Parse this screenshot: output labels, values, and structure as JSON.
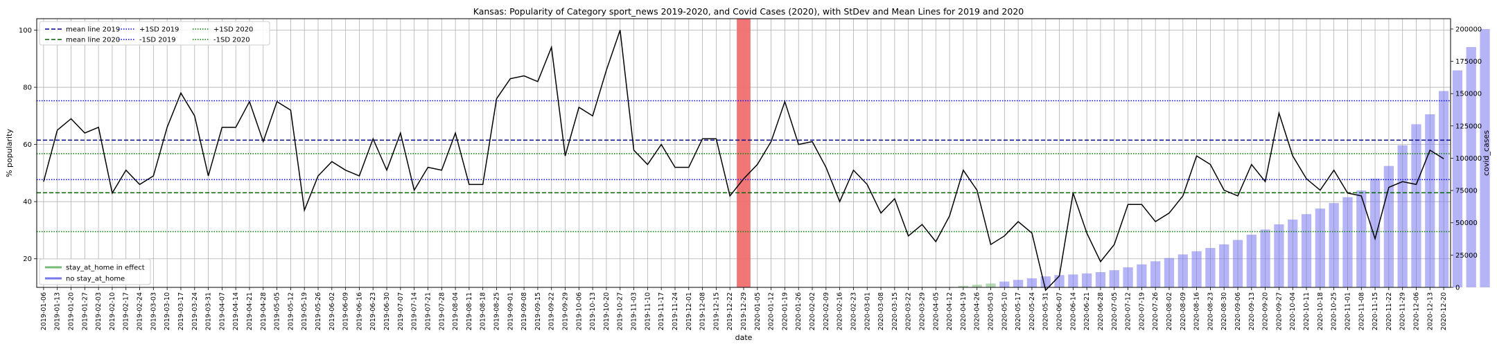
{
  "chart_data": {
    "type": "line",
    "title": "Kansas: Popularity of Category sport_news 2019-2020, and Covid Cases (2020), with StDev and Mean Lines for 2019 and 2020",
    "xlabel": "date",
    "ylabel": "% popularity",
    "y2label": "covid_cases",
    "ylim": [
      10,
      104
    ],
    "y2lim": [
      0,
      208000
    ],
    "yticks": [
      20,
      40,
      60,
      80,
      100
    ],
    "y2ticks": [
      0,
      25000,
      50000,
      75000,
      100000,
      125000,
      150000,
      175000,
      200000
    ],
    "y2ticklabels": [
      "0",
      "25000",
      "50000",
      "75000",
      "100000",
      "125000",
      "150000",
      "175000",
      "200000"
    ],
    "grid": true,
    "colors": {
      "line": "#000000",
      "mean2019": "#00008b",
      "sd2019": "#0000ff",
      "mean2020": "#006400",
      "sd2020": "#008000",
      "bar_no_home": "#7777ee",
      "bar_home": "#77bb77",
      "highlight": "#f07070"
    },
    "dates": [
      "2019-01-06",
      "2019-01-13",
      "2019-01-20",
      "2019-01-27",
      "2019-02-03",
      "2019-02-10",
      "2019-02-17",
      "2019-02-24",
      "2019-03-03",
      "2019-03-10",
      "2019-03-17",
      "2019-03-24",
      "2019-03-31",
      "2019-04-07",
      "2019-04-14",
      "2019-04-21",
      "2019-04-28",
      "2019-05-05",
      "2019-05-12",
      "2019-05-19",
      "2019-05-26",
      "2019-06-02",
      "2019-06-09",
      "2019-06-16",
      "2019-06-23",
      "2019-06-30",
      "2019-07-07",
      "2019-07-14",
      "2019-07-21",
      "2019-07-28",
      "2019-08-04",
      "2019-08-11",
      "2019-08-18",
      "2019-08-25",
      "2019-09-01",
      "2019-09-08",
      "2019-09-15",
      "2019-09-22",
      "2019-09-29",
      "2019-10-06",
      "2019-10-13",
      "2019-10-20",
      "2019-10-27",
      "2019-11-03",
      "2019-11-10",
      "2019-11-17",
      "2019-11-24",
      "2019-12-01",
      "2019-12-08",
      "2019-12-15",
      "2019-12-22",
      "2019-12-29",
      "2020-01-05",
      "2020-01-12",
      "2020-01-19",
      "2020-01-26",
      "2020-02-02",
      "2020-02-09",
      "2020-02-16",
      "2020-02-23",
      "2020-03-01",
      "2020-03-08",
      "2020-03-15",
      "2020-03-22",
      "2020-03-29",
      "2020-04-05",
      "2020-04-12",
      "2020-04-19",
      "2020-04-26",
      "2020-05-03",
      "2020-05-10",
      "2020-05-17",
      "2020-05-24",
      "2020-05-31",
      "2020-06-07",
      "2020-06-14",
      "2020-06-21",
      "2020-06-28",
      "2020-07-05",
      "2020-07-12",
      "2020-07-19",
      "2020-07-26",
      "2020-08-02",
      "2020-08-09",
      "2020-08-16",
      "2020-08-23",
      "2020-08-30",
      "2020-09-06",
      "2020-09-13",
      "2020-09-20",
      "2020-09-27",
      "2020-10-04",
      "2020-10-11",
      "2020-10-18",
      "2020-10-25",
      "2020-11-01",
      "2020-11-08",
      "2020-11-15",
      "2020-11-22",
      "2020-11-29",
      "2020-12-06",
      "2020-12-13",
      "2020-12-20"
    ],
    "popularity": [
      47,
      65,
      69,
      64,
      66,
      43,
      51,
      46,
      49,
      66,
      78,
      70,
      49,
      66,
      66,
      75,
      61,
      75,
      72,
      37,
      49,
      54,
      51,
      49,
      62,
      51,
      64,
      44,
      52,
      51,
      64,
      46,
      46,
      76,
      83,
      84,
      82,
      94,
      56,
      73,
      70,
      86,
      100,
      58,
      53,
      60,
      52,
      52,
      62,
      62,
      42,
      48,
      53,
      61,
      75,
      60,
      61,
      52,
      40,
      51,
      46,
      36,
      41,
      28,
      32,
      26,
      35,
      51,
      44,
      25,
      28,
      33,
      29,
      9,
      14,
      43,
      29,
      19,
      25,
      39,
      39,
      33,
      36,
      42,
      56,
      53,
      44,
      42,
      53,
      47,
      71,
      56,
      48,
      44,
      51,
      43,
      42,
      27,
      45,
      47,
      46,
      58,
      55
    ],
    "covid_cases": [
      null,
      null,
      null,
      null,
      null,
      null,
      null,
      null,
      null,
      null,
      null,
      null,
      null,
      null,
      null,
      null,
      null,
      null,
      null,
      null,
      null,
      null,
      null,
      null,
      null,
      null,
      null,
      null,
      null,
      null,
      null,
      null,
      null,
      null,
      null,
      null,
      null,
      null,
      null,
      null,
      null,
      null,
      null,
      null,
      null,
      null,
      null,
      null,
      null,
      null,
      null,
      null,
      null,
      null,
      null,
      null,
      null,
      null,
      null,
      null,
      null,
      null,
      null,
      null,
      null,
      0,
      0,
      1200,
      2000,
      3000,
      4500,
      5800,
      7000,
      8500,
      9500,
      10000,
      10800,
      11800,
      13300,
      15500,
      17800,
      20200,
      22700,
      25500,
      28000,
      30500,
      33300,
      36700,
      40800,
      44800,
      48800,
      52500,
      56700,
      61000,
      65300,
      69800,
      75000,
      84200,
      94000,
      110000,
      126300,
      134000,
      152000,
      168000,
      186000,
      200000
    ],
    "stay_at_home_start": "2020-04-05",
    "stay_at_home_end": "2020-05-03",
    "highlight_week": "2019-12-29",
    "mean_2019": 61.5,
    "sd_2019_upper": 75.3,
    "sd_2019_lower": 47.7,
    "mean_2020": 43.1,
    "sd_2020_upper": 56.8,
    "sd_2020_lower": 29.5,
    "legend_lines": [
      {
        "label": "mean line 2019",
        "color": "#00008b",
        "style": "dashed"
      },
      {
        "label": "mean line 2020",
        "color": "#006400",
        "style": "dashed"
      },
      {
        "label": "+1SD 2019",
        "color": "#0000ff",
        "style": "dotted"
      },
      {
        "label": "-1SD 2019",
        "color": "#0000ff",
        "style": "dotted"
      },
      {
        "label": "+1SD 2020",
        "color": "#008000",
        "style": "dotted"
      },
      {
        "label": "-1SD 2020",
        "color": "#008000",
        "style": "dotted"
      }
    ],
    "legend_bars": [
      {
        "label": "stay_at_home in effect",
        "color": "#77bb77"
      },
      {
        "label": "no stay_at_home",
        "color": "#7777ee"
      }
    ]
  }
}
